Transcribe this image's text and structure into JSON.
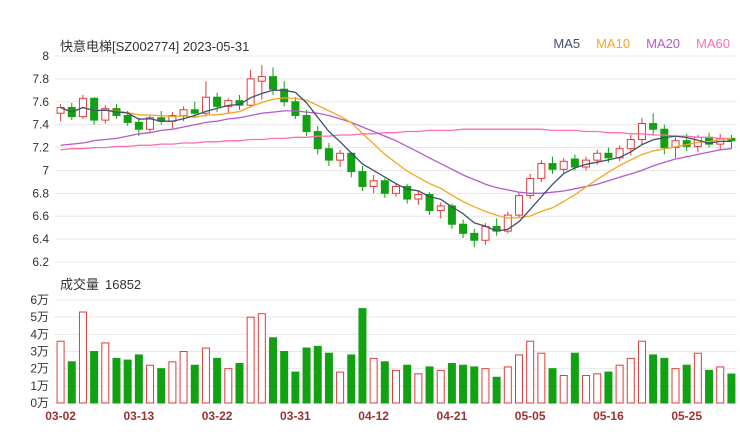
{
  "header": {
    "title": "快意电梯[SZ002774] 2023-05-31",
    "legend": [
      {
        "label": "MA5",
        "color": "#40506e"
      },
      {
        "label": "MA10",
        "color": "#f5a623"
      },
      {
        "label": "MA20",
        "color": "#b45bcf"
      },
      {
        "label": "MA60",
        "color": "#ff6eb4"
      }
    ]
  },
  "volume_panel": {
    "label": "成交量",
    "value": "16852"
  },
  "colors": {
    "up": "#e23b3b",
    "down": "#12a112",
    "grid": "#e8e8e8",
    "axis_text": "#333333",
    "date_text": "#993333",
    "background": "#ffffff",
    "ma5": "#40506e",
    "ma10": "#f5a623",
    "ma20": "#b45bcf",
    "ma60": "#ff6eb4"
  },
  "chart_data": {
    "type": "candlestick+volume",
    "title": "快意电梯[SZ002774] 2023-05-31",
    "volume_title": "成交量 16852",
    "last_volume": 16852,
    "price_axis": {
      "min": 6.2,
      "max": 8.0,
      "ticks": [
        {
          "v": 8.0,
          "label": "8"
        },
        {
          "v": 7.8,
          "label": "7.8"
        },
        {
          "v": 7.6,
          "label": "7.6"
        },
        {
          "v": 7.4,
          "label": "7.4"
        },
        {
          "v": 7.2,
          "label": "7.2"
        },
        {
          "v": 7.0,
          "label": "7"
        },
        {
          "v": 6.8,
          "label": "6.8"
        },
        {
          "v": 6.6,
          "label": "6.6"
        },
        {
          "v": 6.4,
          "label": "6.4"
        },
        {
          "v": 6.2,
          "label": "6.2"
        }
      ]
    },
    "volume_axis": {
      "min": 0,
      "max": 6,
      "unit": "万",
      "ticks": [
        {
          "v": 6,
          "label": "6万"
        },
        {
          "v": 5,
          "label": "5万"
        },
        {
          "v": 4,
          "label": "4万"
        },
        {
          "v": 3,
          "label": "3万"
        },
        {
          "v": 2,
          "label": "2万"
        },
        {
          "v": 1,
          "label": "1万"
        },
        {
          "v": 0,
          "label": "0万"
        }
      ]
    },
    "x_ticks": [
      {
        "i": 0,
        "label": "03-02"
      },
      {
        "i": 7,
        "label": "03-13"
      },
      {
        "i": 14,
        "label": "03-22"
      },
      {
        "i": 21,
        "label": "03-31"
      },
      {
        "i": 28,
        "label": "04-12"
      },
      {
        "i": 35,
        "label": "04-21"
      },
      {
        "i": 42,
        "label": "05-05"
      },
      {
        "i": 49,
        "label": "05-16"
      },
      {
        "i": 56,
        "label": "05-25"
      }
    ],
    "candle_fields": [
      "date",
      "open",
      "high",
      "low",
      "close",
      "volume_wan"
    ],
    "candles": [
      [
        "03-02",
        7.5,
        7.58,
        7.43,
        7.55,
        3.6
      ],
      [
        "03-03",
        7.55,
        7.59,
        7.44,
        7.47,
        2.4
      ],
      [
        "03-06",
        7.47,
        7.66,
        7.45,
        7.63,
        5.3
      ],
      [
        "03-07",
        7.63,
        7.64,
        7.4,
        7.44,
        3.0
      ],
      [
        "03-08",
        7.44,
        7.57,
        7.41,
        7.54,
        3.5
      ],
      [
        "03-09",
        7.54,
        7.58,
        7.45,
        7.48,
        2.6
      ],
      [
        "03-10",
        7.48,
        7.52,
        7.39,
        7.42,
        2.5
      ],
      [
        "03-13",
        7.42,
        7.46,
        7.3,
        7.36,
        2.8
      ],
      [
        "03-14",
        7.36,
        7.49,
        7.33,
        7.46,
        2.2
      ],
      [
        "03-15",
        7.46,
        7.52,
        7.4,
        7.43,
        2.0
      ],
      [
        "03-16",
        7.43,
        7.51,
        7.37,
        7.48,
        2.4
      ],
      [
        "03-17",
        7.48,
        7.56,
        7.43,
        7.53,
        3.0
      ],
      [
        "03-20",
        7.53,
        7.6,
        7.47,
        7.5,
        2.2
      ],
      [
        "03-21",
        7.5,
        7.78,
        7.47,
        7.64,
        3.2
      ],
      [
        "03-22",
        7.64,
        7.68,
        7.51,
        7.56,
        2.6
      ],
      [
        "03-23",
        7.56,
        7.63,
        7.5,
        7.61,
        2.0
      ],
      [
        "03-24",
        7.61,
        7.66,
        7.53,
        7.57,
        2.3
      ],
      [
        "03-27",
        7.57,
        7.88,
        7.55,
        7.8,
        5.0
      ],
      [
        "03-28",
        7.78,
        7.92,
        7.62,
        7.82,
        5.2
      ],
      [
        "03-29",
        7.82,
        7.9,
        7.66,
        7.71,
        3.8
      ],
      [
        "03-30",
        7.71,
        7.78,
        7.56,
        7.6,
        3.0
      ],
      [
        "03-31",
        7.6,
        7.64,
        7.45,
        7.48,
        1.8
      ],
      [
        "04-03",
        7.48,
        7.53,
        7.3,
        7.34,
        3.2
      ],
      [
        "04-04",
        7.34,
        7.39,
        7.14,
        7.19,
        3.3
      ],
      [
        "04-06",
        7.19,
        7.24,
        7.04,
        7.09,
        2.9
      ],
      [
        "04-07",
        7.09,
        7.18,
        7.03,
        7.15,
        1.8
      ],
      [
        "04-10",
        7.15,
        7.16,
        6.94,
        6.99,
        2.8
      ],
      [
        "04-11",
        6.99,
        7.04,
        6.82,
        6.86,
        5.5
      ],
      [
        "04-12",
        6.86,
        6.96,
        6.8,
        6.91,
        2.6
      ],
      [
        "04-13",
        6.91,
        6.93,
        6.76,
        6.8,
        2.4
      ],
      [
        "04-14",
        6.8,
        6.89,
        6.77,
        6.86,
        1.9
      ],
      [
        "04-17",
        6.86,
        6.88,
        6.71,
        6.75,
        2.2
      ],
      [
        "04-18",
        6.75,
        6.82,
        6.7,
        6.79,
        1.7
      ],
      [
        "04-19",
        6.79,
        6.81,
        6.61,
        6.65,
        2.1
      ],
      [
        "04-20",
        6.65,
        6.72,
        6.58,
        6.69,
        1.9
      ],
      [
        "04-21",
        6.69,
        6.71,
        6.49,
        6.53,
        2.3
      ],
      [
        "04-24",
        6.53,
        6.57,
        6.41,
        6.45,
        2.2
      ],
      [
        "04-25",
        6.45,
        6.49,
        6.33,
        6.39,
        2.1
      ],
      [
        "04-26",
        6.39,
        6.54,
        6.35,
        6.51,
        2.0
      ],
      [
        "04-27",
        6.51,
        6.58,
        6.43,
        6.47,
        1.5
      ],
      [
        "04-28",
        6.47,
        6.64,
        6.45,
        6.61,
        2.1
      ],
      [
        "05-04",
        6.61,
        6.81,
        6.59,
        6.78,
        2.8
      ],
      [
        "05-05",
        6.78,
        6.97,
        6.75,
        6.93,
        3.6
      ],
      [
        "05-08",
        6.93,
        7.09,
        6.9,
        7.06,
        2.9
      ],
      [
        "05-09",
        7.06,
        7.12,
        6.97,
        7.01,
        2.0
      ],
      [
        "05-10",
        7.01,
        7.11,
        6.98,
        7.08,
        1.6
      ],
      [
        "05-11",
        7.1,
        7.14,
        7.0,
        7.03,
        2.9
      ],
      [
        "05-12",
        7.03,
        7.12,
        7.0,
        7.09,
        1.6
      ],
      [
        "05-15",
        7.09,
        7.18,
        7.05,
        7.15,
        1.7
      ],
      [
        "05-16",
        7.15,
        7.2,
        7.07,
        7.11,
        1.8
      ],
      [
        "05-17",
        7.11,
        7.22,
        7.08,
        7.19,
        2.2
      ],
      [
        "05-18",
        7.19,
        7.31,
        7.13,
        7.27,
        2.6
      ],
      [
        "05-19",
        7.27,
        7.46,
        7.22,
        7.41,
        3.6
      ],
      [
        "05-22",
        7.41,
        7.5,
        7.31,
        7.36,
        2.8
      ],
      [
        "05-23",
        7.36,
        7.4,
        7.14,
        7.2,
        2.6
      ],
      [
        "05-24",
        7.2,
        7.29,
        7.11,
        7.26,
        2.0
      ],
      [
        "05-25",
        7.26,
        7.32,
        7.17,
        7.21,
        2.2
      ],
      [
        "05-26",
        7.21,
        7.31,
        7.16,
        7.29,
        2.9
      ],
      [
        "05-29",
        7.29,
        7.33,
        7.2,
        7.23,
        1.9
      ],
      [
        "05-30",
        7.23,
        7.32,
        7.18,
        7.28,
        2.1
      ],
      [
        "05-31",
        7.28,
        7.31,
        7.19,
        7.26,
        1.6852
      ]
    ],
    "ma_series": {
      "ma20": [
        7.22,
        7.23,
        7.24,
        7.26,
        7.27,
        7.28,
        7.3,
        7.32,
        7.33,
        7.35,
        7.36,
        7.38,
        7.4,
        7.42,
        7.43,
        7.45,
        7.46,
        7.48,
        7.5,
        7.51,
        7.52,
        7.52,
        7.51,
        7.5,
        7.48,
        7.45,
        7.42,
        7.38,
        7.34,
        7.3,
        7.26,
        7.21,
        7.16,
        7.11,
        7.06,
        7.01,
        6.96,
        6.92,
        6.88,
        6.85,
        6.83,
        6.81,
        6.8,
        6.8,
        6.81,
        6.82,
        6.84,
        6.86,
        6.88,
        6.91,
        6.94,
        6.97,
        7.0,
        7.04,
        7.07,
        7.1,
        7.12,
        7.14,
        7.16,
        7.18,
        7.19
      ],
      "ma60": [
        7.18,
        7.19,
        7.19,
        7.2,
        7.2,
        7.21,
        7.21,
        7.22,
        7.22,
        7.23,
        7.23,
        7.24,
        7.24,
        7.25,
        7.25,
        7.26,
        7.26,
        7.27,
        7.27,
        7.28,
        7.28,
        7.29,
        7.29,
        7.3,
        7.3,
        7.31,
        7.31,
        7.32,
        7.32,
        7.33,
        7.33,
        7.34,
        7.34,
        7.35,
        7.35,
        7.35,
        7.36,
        7.36,
        7.36,
        7.36,
        7.36,
        7.36,
        7.36,
        7.36,
        7.35,
        7.35,
        7.35,
        7.34,
        7.34,
        7.33,
        7.33,
        7.32,
        7.32,
        7.31,
        7.31,
        7.3,
        7.3,
        7.29,
        7.29,
        7.28,
        7.28
      ]
    }
  }
}
